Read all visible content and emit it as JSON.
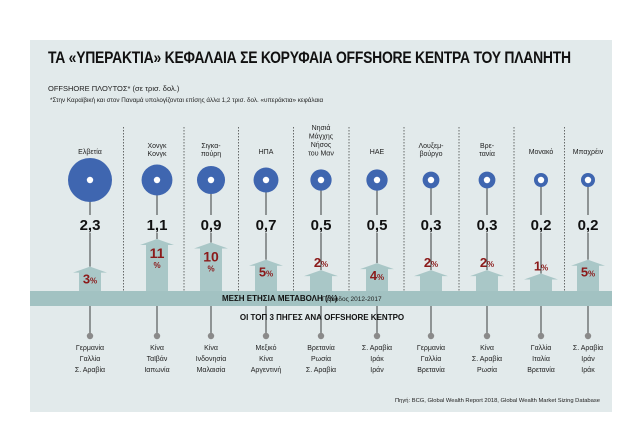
{
  "title": "ΤΑ «ΥΠΕΡΑΚΤΙΑ» ΚΕΦΑΛΑΙΑ ΣΕ ΚΟΡΥΦΑΙΑ OFFSHORE ΚΕΝΤΡΑ ΤΟΥ ΠΛΑΝΗΤΗ",
  "subtitle": "OFFSHORE ΠΛΟΥΤΟΣ* (σε τρισ. δολ.)",
  "note": "*Στην Καραϊβική και στον Παναμά υπολογίζονται επίσης άλλα 1,2 τρισ. δολ. «υπεράκτια» κεφάλαια",
  "band_label": "ΜΕΣΗ ΕΤΗΣΙΑ ΜΕΤΑΒΟΛΗ (%)",
  "band_period": "Περίοδος 2012-2017",
  "top3_label": "ΟΙ ΤΟΠ 3 ΠΗΓΕΣ ΑΝΑ OFFSHORE ΚΕΝΤΡΟ",
  "source": "Πηγή: BCG, Global Wealth Report 2018, Global Wealth Market Sizing Database",
  "colors": {
    "circle": "#3f66b0",
    "arrow": "#a9c7c7",
    "band": "#a2c2c2",
    "percent": "#8b1a1a",
    "background": "#e2eaeb"
  },
  "chart_data": {
    "type": "bubble",
    "unit": "τρισ. δολ.",
    "categories": [
      [
        "Ελβετία"
      ],
      [
        "Χονγκ",
        "Κονγκ"
      ],
      [
        "Σιγκα-",
        "πούρη"
      ],
      [
        "ΗΠΑ"
      ],
      [
        "Νησιά",
        "Μάγχης",
        "Νήσος",
        "του Μαν"
      ],
      [
        "ΗΑΕ"
      ],
      [
        "Λουξεμ-",
        "βούργο"
      ],
      [
        "Βρε-",
        "τανία"
      ],
      [
        "Μονακό"
      ],
      [
        "Μπαχρέιν"
      ]
    ],
    "wealth_labels": [
      "2,3",
      "1,1",
      "0,9",
      "0,7",
      "0,5",
      "0,5",
      "0,3",
      "0,3",
      "0,2",
      "0,2"
    ],
    "wealth": [
      2.3,
      1.1,
      0.9,
      0.7,
      0.5,
      0.5,
      0.3,
      0.3,
      0.2,
      0.2
    ],
    "annual_change_pct": [
      3,
      11,
      10,
      5,
      2,
      4,
      2,
      2,
      1,
      5
    ],
    "top3_sources": [
      [
        "Γερμανία",
        "Γαλλία",
        "Σ. Αραβία"
      ],
      [
        "Κίνα",
        "Ταϊβάν",
        "Ιαπωνία"
      ],
      [
        "Κίνα",
        "Ινδονησία",
        "Μαλαισία"
      ],
      [
        "Μεξικό",
        "Κίνα",
        "Αργεντινή"
      ],
      [
        "Βρετανία",
        "Ρωσία",
        "Σ. Αραβία"
      ],
      [
        "Σ. Αραβία",
        "Ιράκ",
        "Ιράν"
      ],
      [
        "Γερμανία",
        "Γαλλία",
        "Βρετανία"
      ],
      [
        "Κίνα",
        "Σ. Αραβία",
        "Ρωσία"
      ],
      [
        "Γαλλία",
        "Ιταλία",
        "Βρετανία"
      ],
      [
        "Σ. Αραβία",
        "Ιράν",
        "Ιράκ"
      ]
    ]
  }
}
